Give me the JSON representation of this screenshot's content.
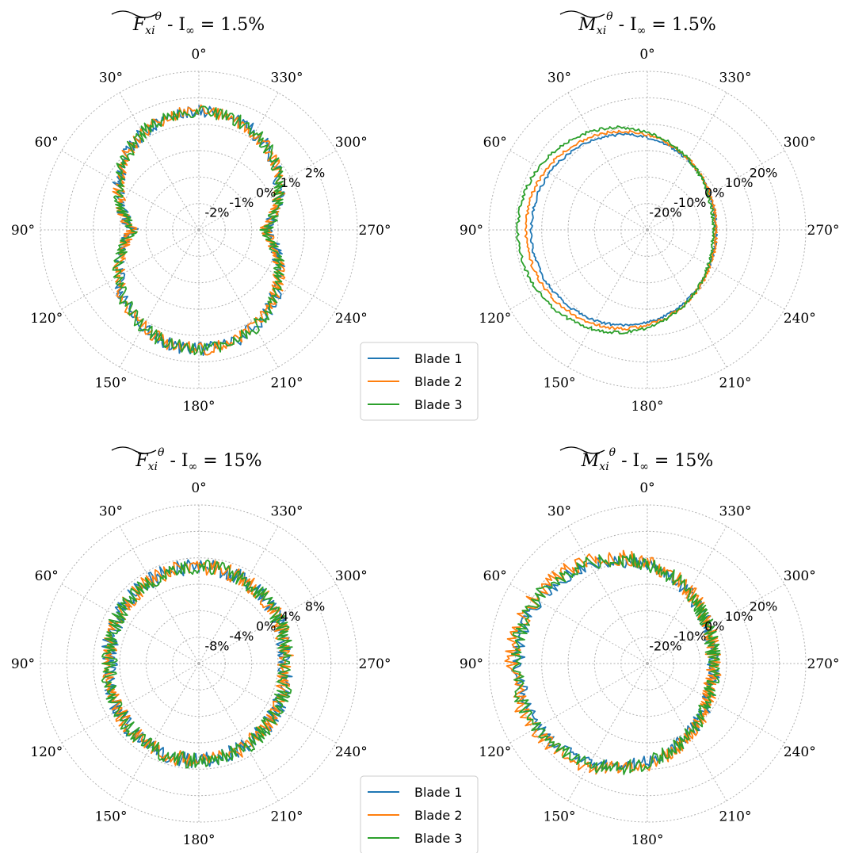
{
  "colors": {
    "blade1": "#1f77b4",
    "blade2": "#ff7f0e",
    "blade3": "#2ca02c",
    "grid": "#b0b0b0"
  },
  "chart_data": [
    {
      "type": "line",
      "projection": "polar",
      "theta_direction": "clockwise",
      "theta_zero": "top",
      "title": {
        "symbol": "F",
        "sub": "xi",
        "sup": "θ",
        "condition": " - I",
        "cond_sub": "∞",
        "value": " = 1.5%"
      },
      "theta_tick_labels": [
        "0°",
        "30°",
        "60°",
        "90°",
        "120°",
        "150°",
        "180°",
        "210°",
        "240°",
        "270°",
        "300°",
        "330°"
      ],
      "r_ticks": [
        -2,
        -1,
        0,
        1,
        2
      ],
      "r_tick_labels": [
        "-2%",
        "-1%",
        "0%",
        "1%",
        "2%"
      ],
      "rlim": [
        -3,
        3
      ],
      "grid": true,
      "legend": "bottom-right",
      "series": [
        {
          "name": "Blade 1",
          "color_key": "blade1",
          "shape": "figure8",
          "a": 2.0,
          "b": 0.0,
          "noise": 0.25,
          "seed": 11
        },
        {
          "name": "Blade 2",
          "color_key": "blade2",
          "shape": "figure8",
          "a": 2.0,
          "b": 0.0,
          "noise": 0.25,
          "seed": 23
        },
        {
          "name": "Blade 3",
          "color_key": "blade3",
          "shape": "figure8",
          "a": 2.0,
          "b": 0.0,
          "noise": 0.25,
          "seed": 37
        }
      ]
    },
    {
      "type": "line",
      "projection": "polar",
      "theta_direction": "clockwise",
      "theta_zero": "top",
      "title": {
        "symbol": "M",
        "sub": "xi",
        "sup": "θ",
        "condition": " - I",
        "cond_sub": "∞",
        "value": " = 1.5%"
      },
      "theta_tick_labels": [
        "0°",
        "30°",
        "60°",
        "90°",
        "120°",
        "150°",
        "180°",
        "210°",
        "240°",
        "270°",
        "300°",
        "330°"
      ],
      "r_ticks": [
        -20,
        -10,
        0,
        10,
        20
      ],
      "r_tick_labels": [
        "-20%",
        "-10%",
        "0%",
        "10%",
        "20%"
      ],
      "rlim": [
        -30,
        30
      ],
      "grid": true,
      "legend": "none",
      "series": [
        {
          "name": "Blade 1",
          "color_key": "blade1",
          "shape": "cardioid",
          "a": 4,
          "b": 18,
          "noise": 0.5,
          "seed": 41
        },
        {
          "name": "Blade 2",
          "color_key": "blade2",
          "shape": "cardioid",
          "a": 4,
          "b": 20,
          "noise": 0.6,
          "seed": 53
        },
        {
          "name": "Blade 3",
          "color_key": "blade3",
          "shape": "cardioid",
          "a": 5,
          "b": 24,
          "noise": 0.6,
          "seed": 67
        }
      ]
    },
    {
      "type": "line",
      "projection": "polar",
      "theta_direction": "clockwise",
      "theta_zero": "top",
      "title": {
        "symbol": "F",
        "sub": "xi",
        "sup": "θ",
        "condition": " - I",
        "cond_sub": "∞",
        "value": " = 15%"
      },
      "theta_tick_labels": [
        "0°",
        "30°",
        "60°",
        "90°",
        "120°",
        "150°",
        "180°",
        "210°",
        "240°",
        "270°",
        "300°",
        "330°"
      ],
      "r_ticks": [
        -8,
        -4,
        0,
        4,
        8
      ],
      "r_tick_labels": [
        "-8%",
        "-4%",
        "0%",
        "4%",
        "8%"
      ],
      "rlim": [
        -12,
        12
      ],
      "grid": true,
      "legend": "bottom-right",
      "series": [
        {
          "name": "Blade 1",
          "color_key": "blade1",
          "shape": "ring",
          "a": 1.5,
          "b": 0.0,
          "noise": 1.2,
          "seed": 71
        },
        {
          "name": "Blade 2",
          "color_key": "blade2",
          "shape": "ring",
          "a": 1.5,
          "b": 0.0,
          "noise": 1.2,
          "seed": 83
        },
        {
          "name": "Blade 3",
          "color_key": "blade3",
          "shape": "ring",
          "a": 1.5,
          "b": 0.0,
          "noise": 1.2,
          "seed": 97
        }
      ]
    },
    {
      "type": "line",
      "projection": "polar",
      "theta_direction": "clockwise",
      "theta_zero": "top",
      "title": {
        "symbol": "M",
        "sub": "xi",
        "sup": "θ",
        "condition": " - I",
        "cond_sub": "∞",
        "value": " = 15%"
      },
      "theta_tick_labels": [
        "0°",
        "30°",
        "60°",
        "90°",
        "120°",
        "150°",
        "180°",
        "210°",
        "240°",
        "270°",
        "300°",
        "330°"
      ],
      "r_ticks": [
        -20,
        -10,
        0,
        10,
        20
      ],
      "r_tick_labels": [
        "-20%",
        "-10%",
        "0%",
        "10%",
        "20%"
      ],
      "rlim": [
        -30,
        30
      ],
      "grid": true,
      "legend": "none",
      "series": [
        {
          "name": "Blade 1",
          "color_key": "blade1",
          "shape": "cardioid",
          "a": 5,
          "b": 24,
          "noise": 2.5,
          "seed": 101
        },
        {
          "name": "Blade 2",
          "color_key": "blade2",
          "shape": "cardioid",
          "a": 5,
          "b": 26,
          "noise": 3.0,
          "seed": 113
        },
        {
          "name": "Blade 3",
          "color_key": "blade3",
          "shape": "cardioid",
          "a": 5,
          "b": 25,
          "noise": 2.8,
          "seed": 127
        }
      ]
    }
  ]
}
